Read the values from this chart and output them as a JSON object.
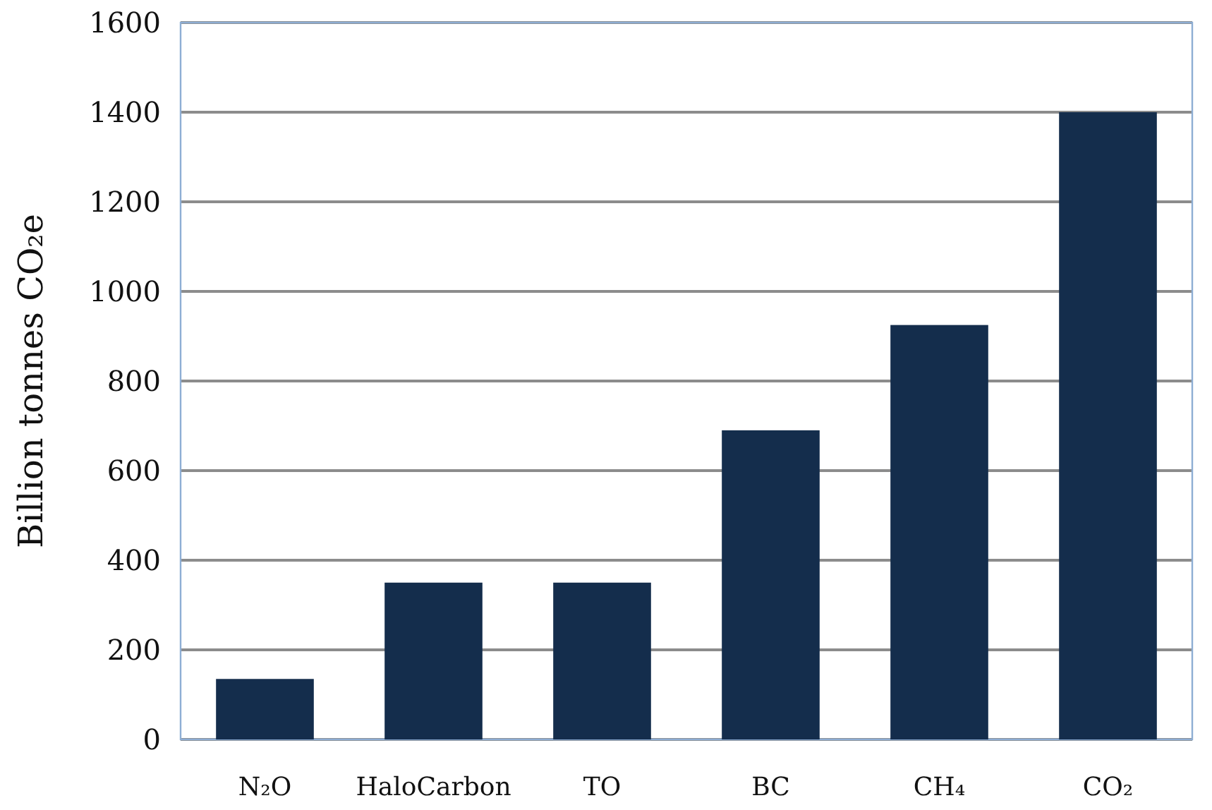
{
  "chart_data": {
    "type": "bar",
    "ylabel": "Billion tonnes CO₂e",
    "categories": [
      "N₂O",
      "HaloCarbon",
      "TO",
      "BC",
      "CH₄",
      "CO₂"
    ],
    "values": [
      135,
      350,
      350,
      690,
      925,
      1400
    ],
    "color": "#142d4c",
    "ylim": [
      0,
      1600
    ],
    "yticks": [
      0,
      200,
      400,
      600,
      800,
      1000,
      1200,
      1400,
      1600
    ],
    "grid": "y"
  }
}
